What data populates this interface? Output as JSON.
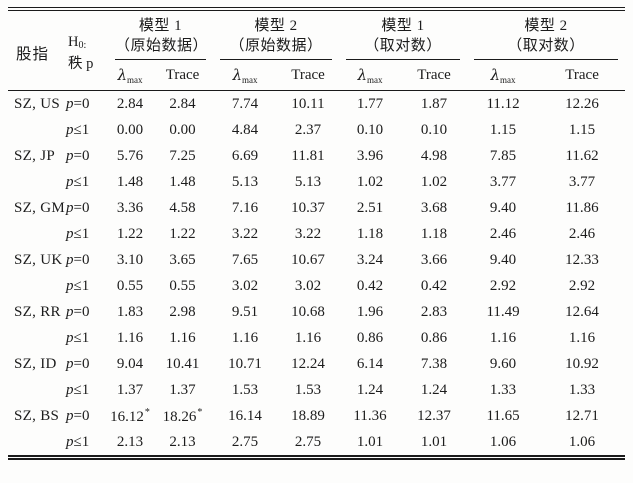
{
  "table": {
    "header": {
      "stock": "股指",
      "h0_base": "H",
      "h0_sub": "0:",
      "h0_rank": "秩 p",
      "groups": [
        {
          "line1": "模型 1",
          "line2": "（原始数据）"
        },
        {
          "line1": "模型 2",
          "line2": "（原始数据）"
        },
        {
          "line1": "模型 1",
          "line2": "（取对数）"
        },
        {
          "line1": "模型 2",
          "line2": "（取对数）"
        }
      ],
      "subheader": {
        "lambda": "λ",
        "lambda_sub": "max",
        "trace": "Trace"
      }
    },
    "rows": [
      {
        "stock": "SZ, US",
        "rank": "p=0",
        "values": [
          "2.84",
          "2.84",
          "7.74",
          "10.11",
          "1.77",
          "1.87",
          "11.12",
          "12.26"
        ]
      },
      {
        "stock": "",
        "rank": "p≤1",
        "values": [
          "0.00",
          "0.00",
          "4.84",
          "2.37",
          "0.10",
          "0.10",
          "1.15",
          "1.15"
        ]
      },
      {
        "stock": "SZ, JP",
        "rank": "p=0",
        "values": [
          "5.76",
          "7.25",
          "6.69",
          "11.81",
          "3.96",
          "4.98",
          "7.85",
          "11.62"
        ]
      },
      {
        "stock": "",
        "rank": "p≤1",
        "values": [
          "1.48",
          "1.48",
          "5.13",
          "5.13",
          "1.02",
          "1.02",
          "3.77",
          "3.77"
        ]
      },
      {
        "stock": "SZ, GM",
        "rank": "p=0",
        "values": [
          "3.36",
          "4.58",
          "7.16",
          "10.37",
          "2.51",
          "3.68",
          "9.40",
          "11.86"
        ]
      },
      {
        "stock": "",
        "rank": "p≤1",
        "values": [
          "1.22",
          "1.22",
          "3.22",
          "3.22",
          "1.18",
          "1.18",
          "2.46",
          "2.46"
        ]
      },
      {
        "stock": "SZ, UK",
        "rank": "p=0",
        "values": [
          "3.10",
          "3.65",
          "7.65",
          "10.67",
          "3.24",
          "3.66",
          "9.40",
          "12.33"
        ]
      },
      {
        "stock": "",
        "rank": "p≤1",
        "values": [
          "0.55",
          "0.55",
          "3.02",
          "3.02",
          "0.42",
          "0.42",
          "2.92",
          "2.92"
        ]
      },
      {
        "stock": "SZ, RR",
        "rank": "p=0",
        "values": [
          "1.83",
          "2.98",
          "9.51",
          "10.68",
          "1.96",
          "2.83",
          "11.49",
          "12.64"
        ]
      },
      {
        "stock": "",
        "rank": "p≤1",
        "values": [
          "1.16",
          "1.16",
          "1.16",
          "1.16",
          "0.86",
          "0.86",
          "1.16",
          "1.16"
        ]
      },
      {
        "stock": "SZ, ID",
        "rank": "p=0",
        "values": [
          "9.04",
          "10.41",
          "10.71",
          "12.24",
          "6.14",
          "7.38",
          "9.60",
          "10.92"
        ]
      },
      {
        "stock": "",
        "rank": "p≤1",
        "values": [
          "1.37",
          "1.37",
          "1.53",
          "1.53",
          "1.24",
          "1.24",
          "1.33",
          "1.33"
        ]
      },
      {
        "stock": "SZ, BS",
        "rank": "p=0",
        "values": [
          "16.12*",
          "18.26*",
          "16.14",
          "18.89",
          "11.36",
          "12.37",
          "11.65",
          "12.71"
        ]
      },
      {
        "stock": "",
        "rank": "p≤1",
        "values": [
          "2.13",
          "2.13",
          "2.75",
          "2.75",
          "1.01",
          "1.01",
          "1.06",
          "1.06"
        ]
      }
    ]
  }
}
